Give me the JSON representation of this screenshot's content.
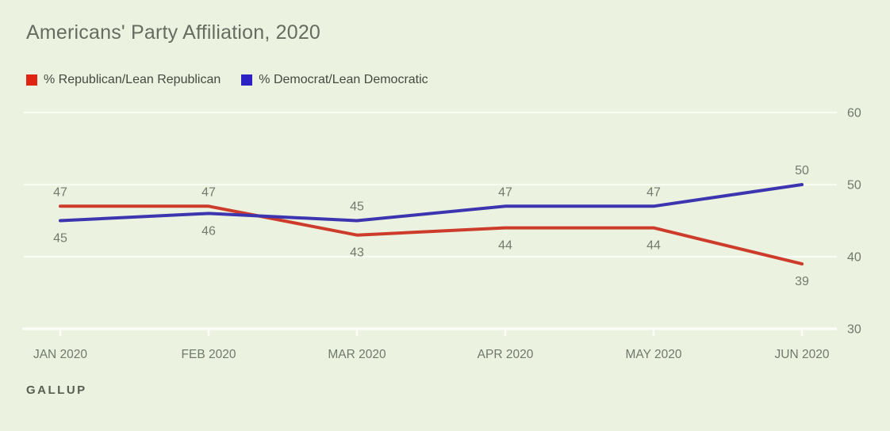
{
  "page": {
    "background": "#ebf2e0"
  },
  "header": {
    "title": "Americans' Party Affiliation, 2020"
  },
  "legend": {
    "items": [
      {
        "label": "% Republican/Lean Republican",
        "color": "#df2413"
      },
      {
        "label": "% Democrat/Lean Democratic",
        "color": "#2c22c3"
      }
    ]
  },
  "footer": {
    "source": "GALLUP"
  },
  "chart_data": {
    "type": "line",
    "title": "Americans' Party Affiliation, 2020",
    "categories": [
      "JAN 2020",
      "FEB 2020",
      "MAR 2020",
      "APR 2020",
      "MAY 2020",
      "JUN 2020"
    ],
    "series": [
      {
        "name": "% Republican/Lean Republican",
        "line_color": "#cd3b2b",
        "legend_color": "#df2413",
        "values": [
          47,
          47,
          43,
          44,
          44,
          39
        ],
        "label_positions": [
          "above",
          "above",
          "below",
          "below",
          "below",
          "below"
        ]
      },
      {
        "name": "% Democrat/Lean Democratic",
        "line_color": "#3d35b0",
        "legend_color": "#2c22c3",
        "values": [
          45,
          46,
          45,
          47,
          47,
          50
        ],
        "label_positions": [
          "below",
          "below",
          "above",
          "above",
          "above",
          "above"
        ]
      }
    ],
    "ylim": [
      30,
      60
    ],
    "yticks": [
      30,
      40,
      50,
      60
    ],
    "grid": "horizontal-white",
    "legend_position": "top-left",
    "source": "GALLUP",
    "colors": {
      "gridline": "#f9fcf1",
      "axis_line": "#fbfdf6",
      "data_label": "#747b6e",
      "axis_label": "#71786c"
    }
  }
}
